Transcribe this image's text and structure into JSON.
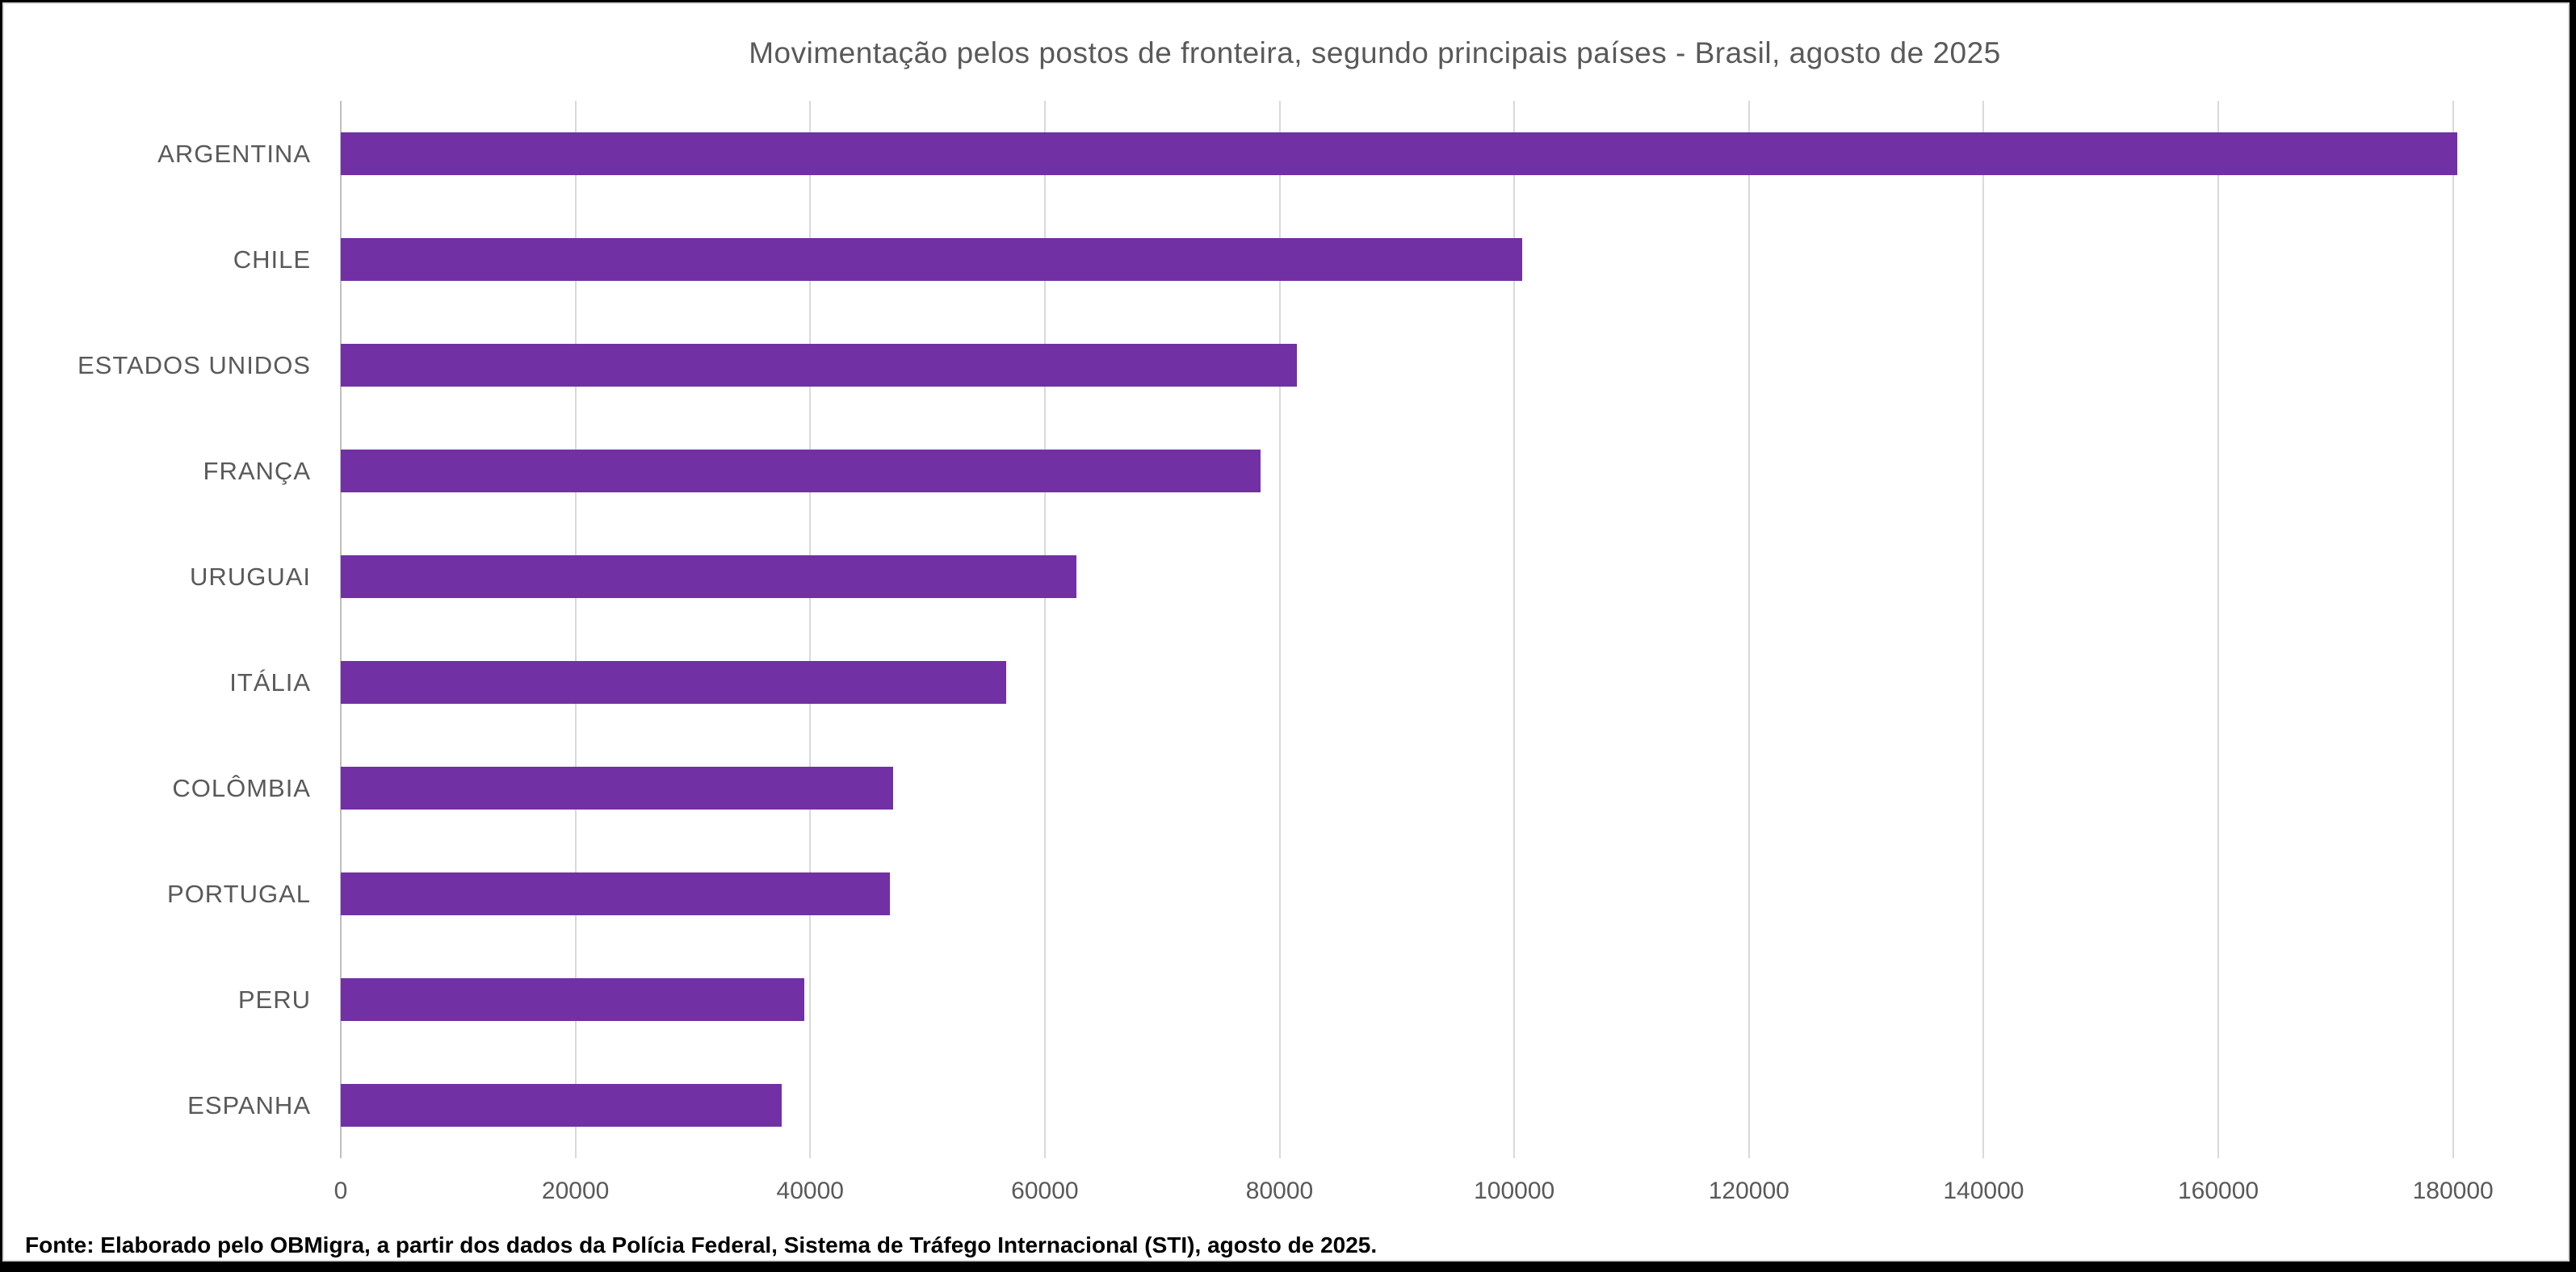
{
  "chart_data": {
    "type": "bar",
    "orientation": "horizontal",
    "title": "Movimentação pelos postos de fronteira, segundo principais países - Brasil, agosto de 2025",
    "categories": [
      "ARGENTINA",
      "CHILE",
      "ESTADOS UNIDOS",
      "FRANÇA",
      "URUGUAI",
      "ITÁLIA",
      "COLÔMBIA",
      "PORTUGAL",
      "PERU",
      "ESPANHA"
    ],
    "values": [
      180400,
      100700,
      81500,
      78400,
      62700,
      56700,
      47100,
      46800,
      39500,
      37600
    ],
    "xlabel": "",
    "ylabel": "",
    "x_ticks": [
      0,
      20000,
      40000,
      60000,
      80000,
      100000,
      120000,
      140000,
      160000,
      180000
    ],
    "xlim": [
      0,
      190000
    ],
    "grid": true,
    "legend": "none",
    "bar_color": "#7130A3",
    "source": "Fonte: Elaborado pelo OBMigra, a partir dos dados da Polícia Federal, Sistema de Tráfego Internacional (STI), agosto de 2025."
  },
  "colors": {
    "bar": "#7130A3",
    "gridline": "#D9D9D9",
    "zero_axis": "#BFBFBF",
    "label_text": "#595959",
    "source_text": "#000000",
    "outer_border": "#000000",
    "chart_border": "#D9D9D9",
    "background": "#FFFFFF"
  }
}
